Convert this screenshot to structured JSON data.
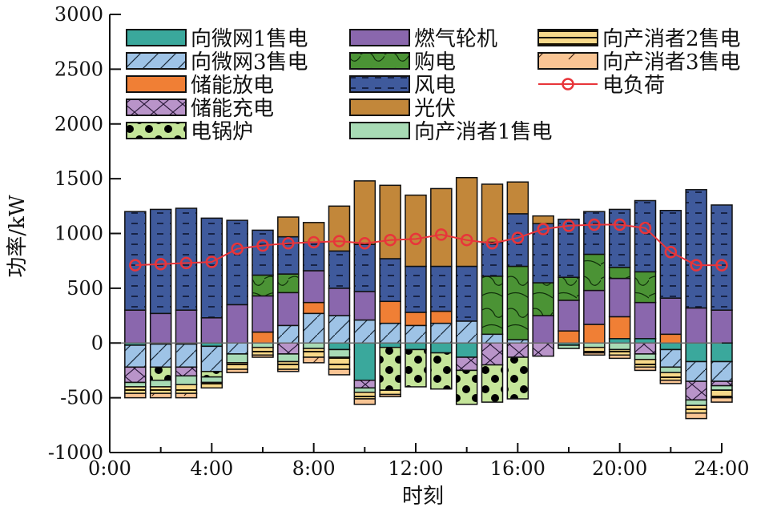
{
  "chart_data": {
    "type": "bar",
    "stacked": true,
    "title": "",
    "xlabel": "时刻",
    "ylabel": "功率/kW",
    "ylim": [
      -1000,
      3000
    ],
    "yticks": [
      -1000,
      -500,
      0,
      500,
      1000,
      1500,
      2000,
      2500,
      3000
    ],
    "xlim": [
      0,
      24
    ],
    "xtick_labels": [
      "0:00",
      "4:00",
      "8:00",
      "12:00",
      "16:00",
      "20:00",
      "24:00"
    ],
    "x": [
      1,
      2,
      3,
      4,
      5,
      6,
      7,
      8,
      9,
      10,
      11,
      12,
      13,
      14,
      15,
      16,
      17,
      18,
      19,
      20,
      21,
      22,
      23,
      24
    ],
    "legend_position": "top",
    "series": [
      {
        "name": "向微网1售电",
        "color": "#3aa89c",
        "pattern": "solid",
        "values": [
          -20,
          -10,
          -10,
          -30,
          0,
          0,
          0,
          0,
          -60,
          -340,
          -40,
          -60,
          -90,
          -130,
          0,
          0,
          0,
          -20,
          0,
          40,
          40,
          -60,
          -170,
          -170
        ]
      },
      {
        "name": "向微网3售电",
        "color": "#9ec3e6",
        "pattern": "diag",
        "values": [
          -200,
          -210,
          -210,
          -230,
          -100,
          0,
          160,
          270,
          250,
          210,
          180,
          160,
          180,
          200,
          80,
          30,
          0,
          0,
          0,
          0,
          0,
          -160,
          -180,
          -180
        ]
      },
      {
        "name": "储能放电",
        "color": "#f07f35",
        "pattern": "solid",
        "values": [
          0,
          0,
          0,
          0,
          0,
          100,
          0,
          100,
          0,
          0,
          200,
          120,
          110,
          0,
          0,
          0,
          0,
          110,
          170,
          200,
          0,
          80,
          0,
          0
        ]
      },
      {
        "name": "储能充电",
        "color": "#b994c9",
        "pattern": "cross",
        "values": [
          -140,
          0,
          -80,
          0,
          0,
          0,
          -100,
          0,
          0,
          -70,
          0,
          0,
          0,
          -120,
          -200,
          -130,
          -120,
          0,
          0,
          0,
          -100,
          0,
          -170,
          -40
        ]
      },
      {
        "name": "电锅炉",
        "color": "#c5e59a",
        "pattern": "dots",
        "values": [
          0,
          -120,
          0,
          -50,
          0,
          0,
          0,
          0,
          0,
          0,
          -390,
          -340,
          -330,
          -310,
          -340,
          -380,
          0,
          0,
          0,
          0,
          0,
          0,
          0,
          0
        ]
      },
      {
        "name": "燃气轮机",
        "color": "#8a67ad",
        "pattern": "solid",
        "values": [
          300,
          270,
          300,
          230,
          350,
          330,
          300,
          290,
          250,
          260,
          0,
          0,
          0,
          0,
          0,
          0,
          250,
          280,
          310,
          350,
          330,
          330,
          320,
          300
        ]
      },
      {
        "name": "购电",
        "color": "#4b9335",
        "pattern": "curves",
        "values": [
          0,
          0,
          0,
          0,
          0,
          190,
          170,
          0,
          0,
          0,
          0,
          0,
          0,
          0,
          530,
          670,
          300,
          210,
          330,
          100,
          280,
          0,
          0,
          0
        ]
      },
      {
        "name": "风电",
        "color": "#3f5a9c",
        "pattern": "dashes",
        "values": [
          900,
          950,
          930,
          910,
          770,
          410,
          340,
          260,
          340,
          430,
          390,
          420,
          410,
          500,
          310,
          480,
          540,
          530,
          390,
          530,
          650,
          800,
          1080,
          960
        ]
      },
      {
        "name": "光伏",
        "color": "#c2873a",
        "pattern": "solid",
        "values": [
          0,
          0,
          0,
          0,
          0,
          0,
          180,
          180,
          410,
          580,
          670,
          650,
          710,
          810,
          530,
          290,
          70,
          0,
          0,
          0,
          0,
          0,
          0,
          0
        ]
      },
      {
        "name": "向产消者1售电",
        "color": "#a8dbb5",
        "pattern": "solid",
        "values": [
          -40,
          -60,
          -80,
          -50,
          -80,
          -40,
          -70,
          -50,
          -70,
          -40,
          0,
          0,
          0,
          0,
          0,
          0,
          0,
          -30,
          -40,
          -60,
          -50,
          -50,
          -50,
          -40
        ]
      },
      {
        "name": "向产消者2售电",
        "color": "#f8d98a",
        "pattern": "hstripes",
        "values": [
          -60,
          -60,
          -80,
          -50,
          -60,
          -70,
          -70,
          -80,
          -110,
          -60,
          -40,
          0,
          0,
          0,
          0,
          0,
          0,
          0,
          -50,
          -50,
          -70,
          -70,
          -70,
          -70
        ]
      },
      {
        "name": "向产消者3售电",
        "color": "#f9c594",
        "pattern": "slash",
        "values": [
          -40,
          -40,
          -40,
          0,
          -30,
          -20,
          -20,
          -50,
          -50,
          -50,
          -20,
          0,
          0,
          0,
          0,
          0,
          0,
          0,
          -20,
          -30,
          -30,
          -30,
          -50,
          -40
        ]
      }
    ],
    "line": {
      "name": "电负荷",
      "color": "#e8353a",
      "values": [
        710,
        720,
        730,
        740,
        860,
        890,
        910,
        920,
        930,
        910,
        940,
        950,
        990,
        940,
        910,
        960,
        1040,
        1070,
        1080,
        1080,
        1050,
        830,
        710,
        710
      ]
    },
    "positive_stack_order": [
      "向微网1售电",
      "向微网3售电",
      "储能放电",
      "燃气轮机",
      "购电",
      "风电",
      "光伏"
    ],
    "negative_stack_order": [
      "向微网1售电",
      "向微网3售电",
      "储能充电",
      "电锅炉",
      "向产消者1售电",
      "向产消者2售电",
      "向产消者3售电"
    ],
    "legend_order": [
      "向微网1售电",
      "向微网3售电",
      "储能放电",
      "储能充电",
      "电锅炉",
      "燃气轮机",
      "购电",
      "风电",
      "光伏",
      "向产消者1售电",
      "向产消者2售电",
      "向产消者3售电",
      "电负荷"
    ]
  }
}
